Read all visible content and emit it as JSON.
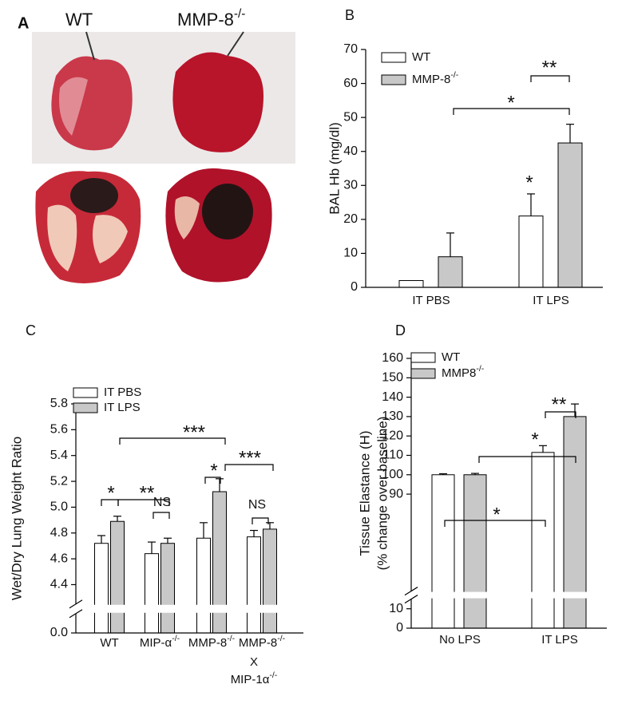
{
  "figure_a": {
    "panel_label": "A",
    "labels": [
      "WT",
      "MMP-8-/-"
    ]
  },
  "chart_data": [
    {
      "type": "bar",
      "panel_label": "B",
      "ylabel": [
        "BAL Hb (mg/dl)"
      ],
      "categories": [
        "IT PBS",
        "IT LPS"
      ],
      "series": [
        {
          "name": "WT",
          "color": "#ffffff",
          "values": [
            2,
            21
          ],
          "errors": [
            0,
            6.5
          ]
        },
        {
          "name": "MMP-8-/-",
          "color": "#c8c8c8",
          "values": [
            9,
            42.5
          ],
          "errors": [
            7,
            5.5
          ]
        }
      ],
      "ylim": [
        0,
        70
      ],
      "yticks": [
        0,
        10,
        20,
        30,
        40,
        50,
        60,
        70
      ],
      "annotations": [
        {
          "text": "**"
        },
        {
          "text": "*"
        },
        {
          "text": "*"
        }
      ]
    },
    {
      "type": "bar",
      "panel_label": "C",
      "ylabel": [
        "Wet/Dry Lung Weight Ratio"
      ],
      "categories": [
        "WT",
        "MIP-α-/-",
        "MMP-8-/-",
        "MMP-8-/-"
      ],
      "category_extra": [
        "X",
        "MIP-1α-/-"
      ],
      "series": [
        {
          "name": "IT PBS",
          "color": "#ffffff",
          "values": [
            4.72,
            4.64,
            4.76,
            4.77
          ],
          "errors": [
            0.06,
            0.09,
            0.12,
            0.05
          ]
        },
        {
          "name": "IT LPS",
          "color": "#c8c8c8",
          "values": [
            4.89,
            4.72,
            5.12,
            4.83
          ],
          "errors": [
            0.04,
            0.04,
            0.1,
            0.05
          ]
        }
      ],
      "ylim": [
        0,
        5.8
      ],
      "ybreak": [
        0.15,
        4.25
      ],
      "yticks": [
        {
          "value": 0,
          "label": "0.0"
        },
        4.4,
        4.6,
        4.8,
        {
          "value": 5,
          "label": "5.0"
        },
        5.2,
        5.4,
        5.6,
        5.8
      ],
      "annotations": [
        {
          "text": "*"
        },
        {
          "text": "**"
        },
        {
          "text": "***"
        },
        {
          "text": "*"
        },
        {
          "text": "***"
        },
        {
          "text": "NS"
        },
        {
          "text": "NS"
        }
      ]
    },
    {
      "type": "bar",
      "panel_label": "D",
      "ylabel": [
        "Tissue Elastance (H)",
        "(% change over baseline)"
      ],
      "categories": [
        "No LPS",
        "IT LPS"
      ],
      "series": [
        {
          "name": "WT",
          "color": "#ffffff",
          "values": [
            100,
            111.5
          ],
          "errors": [
            0.5,
            3.5
          ]
        },
        {
          "name": "MMP8-/-",
          "color": "#c8c8c8",
          "values": [
            100,
            130
          ],
          "errors": [
            0.7,
            6.5
          ]
        }
      ],
      "ylim": [
        0,
        160
      ],
      "ybreak": [
        15,
        40
      ],
      "yticks": [
        0,
        10,
        90,
        100,
        110,
        120,
        130,
        140,
        150,
        160
      ],
      "annotations": [
        {
          "text": "**"
        },
        {
          "text": "*"
        },
        {
          "text": "*"
        }
      ]
    }
  ]
}
